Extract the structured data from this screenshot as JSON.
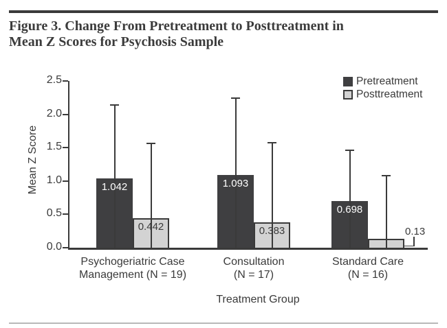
{
  "figure": {
    "title_lines": [
      "Figure 3. Change From Pretreatment to Posttreatment in",
      "Mean Z Scores for Psychosis Sample"
    ]
  },
  "chart_data": {
    "type": "bar",
    "title": "Figure 3. Change From Pretreatment to Posttreatment in Mean Z Scores for Psychosis Sample",
    "xlabel": "Treatment Group",
    "ylabel": "Mean Z Score",
    "ylim": [
      0,
      2.5
    ],
    "ytick_labels": [
      "0.0",
      "0.5",
      "1.0",
      "1.5",
      "2.0",
      "2.5"
    ],
    "grid": false,
    "legend_position": "top-right",
    "categories": [
      {
        "lines": [
          "Psychogeriatric Case",
          "Management (N = 19)"
        ]
      },
      {
        "lines": [
          "Consultation",
          "(N = 17)"
        ]
      },
      {
        "lines": [
          "Standard Care",
          "(N = 16)"
        ]
      }
    ],
    "series": [
      {
        "name": "Pretreatment",
        "color": "#3f3f41",
        "label_color": "#ffffff",
        "values": [
          1.042,
          1.093,
          0.698
        ],
        "value_labels": [
          "1.042",
          "1.093",
          "0.698"
        ],
        "error_bar_tops": [
          2.15,
          2.25,
          1.47
        ]
      },
      {
        "name": "Posttreatment",
        "color": "#d3d3d3",
        "border_color": "#3a3a3a",
        "label_color": "#3a3a3a",
        "values": [
          0.442,
          0.383,
          0.13
        ],
        "value_labels": [
          "0.442",
          "0.383",
          "0.13"
        ],
        "error_bar_tops": [
          1.57,
          1.58,
          1.09
        ],
        "label_outside": [
          false,
          false,
          true
        ]
      }
    ],
    "colors": {
      "axis": "#3a3a3a",
      "text": "#3a3a3a",
      "background": "#ffffff",
      "rule_top": "#3a3a3a",
      "rule_bottom": "#b8b8b8"
    }
  }
}
